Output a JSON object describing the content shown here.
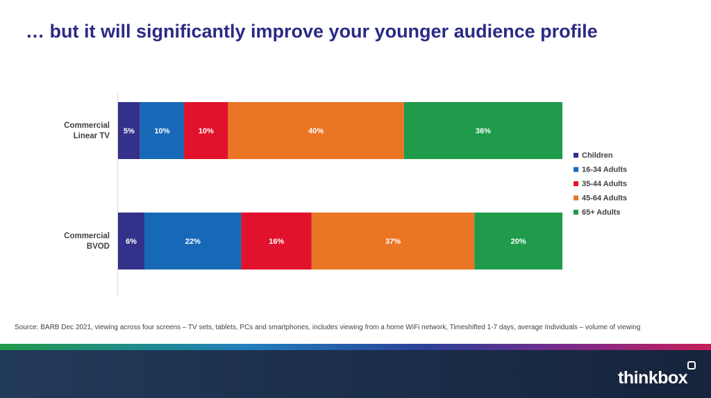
{
  "title": "… but it will significantly improve your younger audience profile",
  "source": "Source: BARB Dec 2021, viewing across four screens – TV sets, tablets, PCs and smartphones, includes viewing from a home WiFi network, Timeshifted 1-7 days, average Individuals – volume of viewing",
  "logo": "thinkbox",
  "chart_data": {
    "type": "bar",
    "orientation": "horizontal",
    "stacked": true,
    "categories": [
      "Commercial Linear TV",
      "Commercial BVOD"
    ],
    "category_lines": [
      [
        "Commercial",
        "Linear TV"
      ],
      [
        "Commercial",
        "BVOD"
      ]
    ],
    "series": [
      {
        "name": "Children",
        "values": [
          5,
          6
        ],
        "labels": [
          "5%",
          "6%"
        ],
        "color": "#33318a"
      },
      {
        "name": "16-34 Adults",
        "values": [
          10,
          22
        ],
        "labels": [
          "10%",
          "22%"
        ],
        "color": "#1769b8"
      },
      {
        "name": "35-44 Adults",
        "values": [
          10,
          16
        ],
        "labels": [
          "10%",
          "16%"
        ],
        "color": "#e1122b"
      },
      {
        "name": "45-64 Adults",
        "values": [
          40,
          37
        ],
        "labels": [
          "40%",
          "37%"
        ],
        "color": "#ea7524"
      },
      {
        "name": "65+ Adults",
        "values": [
          36,
          20
        ],
        "labels": [
          "36%",
          "20%"
        ],
        "color": "#1f9b4b"
      }
    ],
    "legend_position": "right",
    "grid": false
  }
}
